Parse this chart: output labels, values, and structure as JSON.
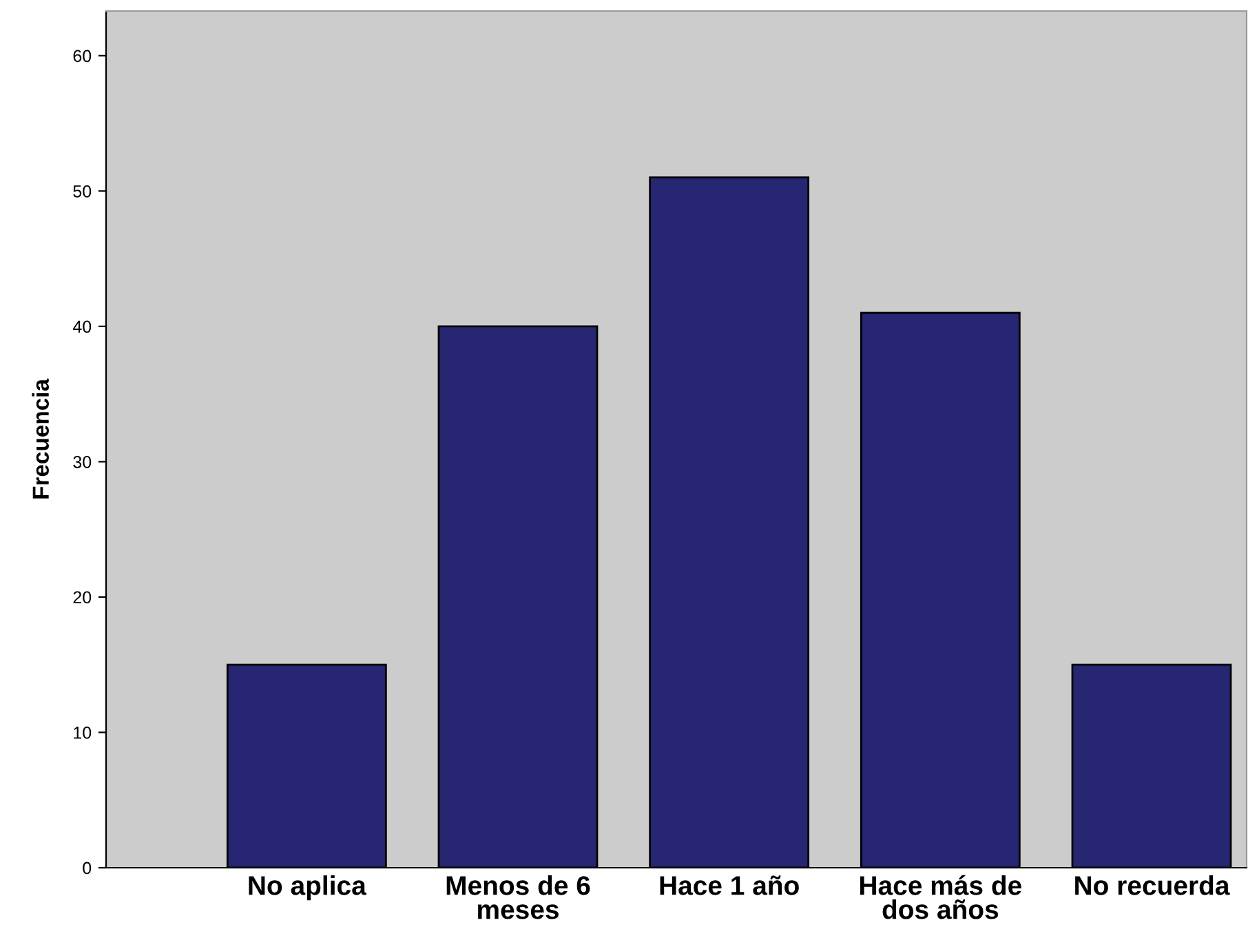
{
  "chart_data": {
    "type": "bar",
    "ylabel": "Frecuencia",
    "categories": [
      "No aplica",
      "Menos de 6 meses",
      "Hace 1 año",
      "Hace más de dos años",
      "No recuerda"
    ],
    "values": [
      15,
      40,
      51,
      41,
      15
    ],
    "color": "#262673",
    "ylim": [
      0,
      63.3
    ],
    "yticks": [
      0,
      10,
      20,
      30,
      40,
      50,
      60
    ],
    "grid": false
  }
}
